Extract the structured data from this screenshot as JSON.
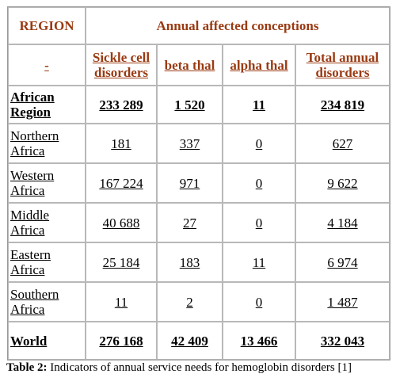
{
  "table": {
    "region_header": "REGION",
    "group_header": "Annual affected conceptions",
    "subheader_first": "-",
    "columns": [
      "Sickle cell disorders",
      "beta thal",
      "alpha thal",
      "Total annual disorders"
    ],
    "rows": [
      [
        "African Region",
        "233 289",
        "1 520",
        "11",
        "234 819"
      ],
      [
        "Northern Africa",
        "181",
        "337",
        "0",
        "627"
      ],
      [
        "Western Africa",
        "167 224",
        "971",
        "0",
        "9 622"
      ],
      [
        "Middle Africa",
        "40 688",
        "27",
        "0",
        "4 184"
      ],
      [
        "Eastern Africa",
        "25 184",
        "183",
        "11",
        "6 974"
      ],
      [
        "Southern Africa",
        "11",
        "2",
        "0",
        "1 487"
      ],
      [
        "World",
        "276 168",
        "42 409",
        "13 466",
        "332 043"
      ]
    ]
  },
  "caption": {
    "label": "Table 2:",
    "text": "Indicators of annual service needs for hemoglobin disorders [1]"
  }
}
